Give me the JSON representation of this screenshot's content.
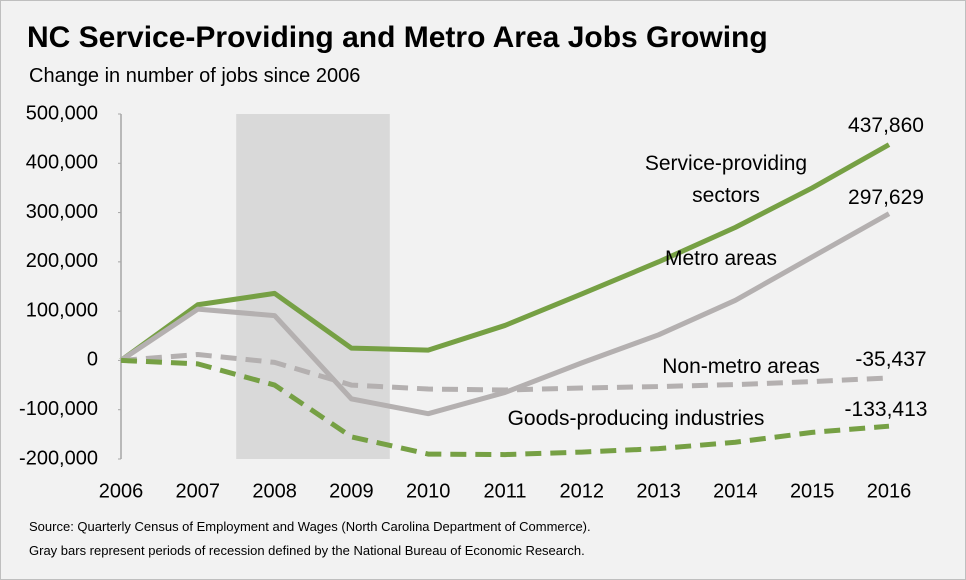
{
  "chart_data": {
    "type": "line",
    "title": "NC Service-Providing and Metro Area Jobs Growing",
    "subtitle": "Change in number of jobs since 2006",
    "x": [
      2006,
      2007,
      2008,
      2009,
      2010,
      2011,
      2012,
      2013,
      2014,
      2015,
      2016
    ],
    "xlim": [
      2006,
      2016
    ],
    "xticks": [
      2006,
      2007,
      2008,
      2009,
      2010,
      2011,
      2012,
      2013,
      2014,
      2015,
      2016
    ],
    "ylim": [
      -200000,
      500000
    ],
    "yticks": [
      {
        "value": -200000,
        "label": "-200,000"
      },
      {
        "value": -100000,
        "label": "-100,000"
      },
      0,
      {
        "value": 100000,
        "label": "100,000"
      },
      {
        "value": 200000,
        "label": "200,000"
      },
      {
        "value": 300000,
        "label": "300,000"
      },
      {
        "value": 400000,
        "label": "400,000"
      },
      {
        "value": 500000,
        "label": "500,000"
      }
    ],
    "shaded_region": [
      2007.5,
      2009.5
    ],
    "shaded_color": "#d9d9d9",
    "series": [
      {
        "name": "Service-providing sectors",
        "color": "#76a044",
        "dashed": false,
        "values": [
          0,
          113000,
          136000,
          25000,
          21000,
          71000,
          135000,
          200000,
          270000,
          350000,
          437860
        ],
        "end_label": "437,860"
      },
      {
        "name": "Metro areas",
        "color": "#b4b0b0",
        "dashed": false,
        "values": [
          0,
          104000,
          91000,
          -78000,
          -108000,
          -65000,
          -5000,
          52000,
          122000,
          210000,
          297629
        ],
        "end_label": "297,629"
      },
      {
        "name": "Non-metro areas",
        "color": "#b4b0b0",
        "dashed": true,
        "values": [
          0,
          12000,
          -4000,
          -50000,
          -58000,
          -60000,
          -56000,
          -53000,
          -49000,
          -43000,
          -35437
        ],
        "end_label": "-35,437"
      },
      {
        "name": "Goods-producing industries",
        "color": "#76a044",
        "dashed": true,
        "values": [
          0,
          -7000,
          -50000,
          -155000,
          -190000,
          -191000,
          -186000,
          -179000,
          -166000,
          -146000,
          -133413
        ],
        "end_label": "-133,413"
      }
    ],
    "source": [
      "Source: Quarterly Census of Employment and Wages (North Carolina Department of Commerce).",
      "Gray bars represent periods of recession defined by the National Bureau of Economic Research."
    ]
  }
}
